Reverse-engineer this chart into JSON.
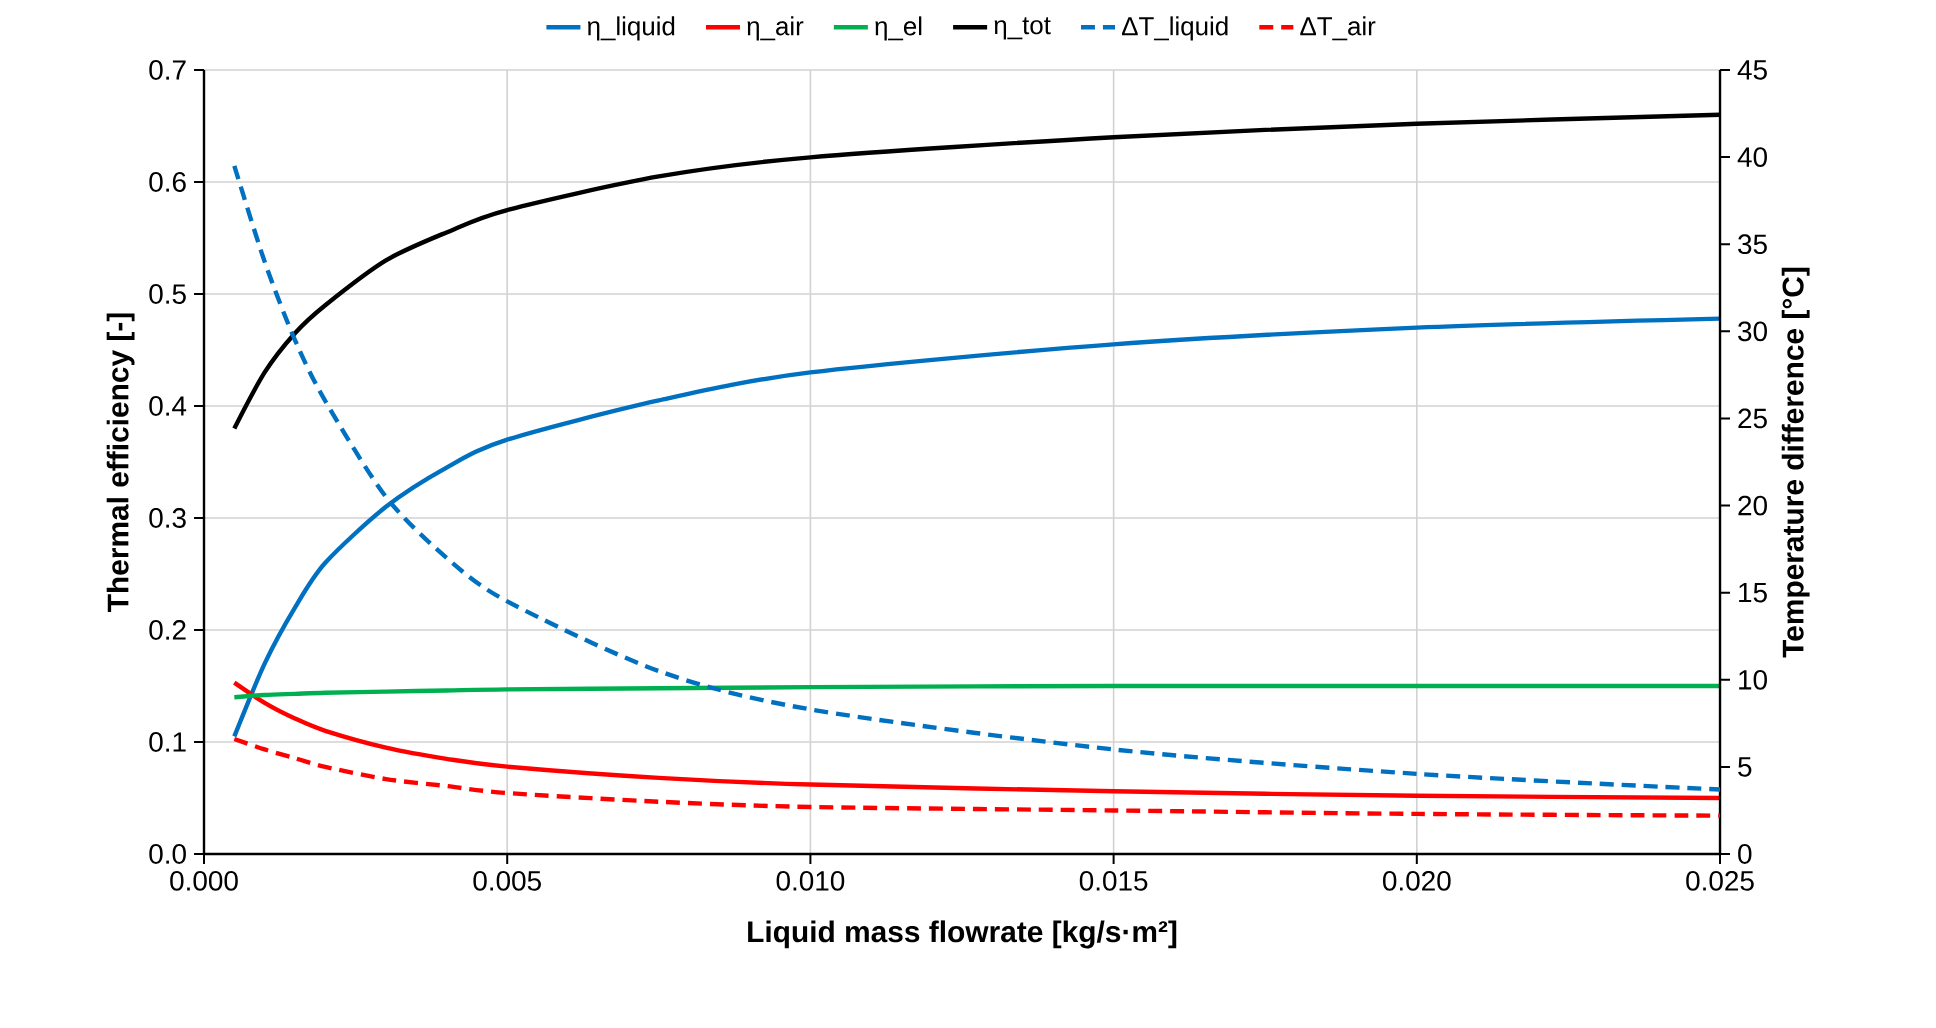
{
  "chart_data": {
    "type": "line",
    "xlabel": "Liquid mass flowrate [kg/s·m²]",
    "ylabel": "Thermal efficiency  [-]",
    "y2label": "Temperature difference   [°C]",
    "xlim": [
      0,
      0.025
    ],
    "xticks": [
      {
        "value": 0,
        "label": "0.000"
      },
      {
        "value": 0.005,
        "label": "0.005"
      },
      {
        "value": 0.01,
        "label": "0.010"
      },
      {
        "value": 0.015,
        "label": "0.015"
      },
      {
        "value": 0.02,
        "label": "0.020"
      },
      {
        "value": 0.025,
        "label": "0.025"
      }
    ],
    "ylim": [
      0,
      0.7
    ],
    "yticks": [
      {
        "value": 0,
        "label": "0.0"
      },
      {
        "value": 0.1,
        "label": "0.1"
      },
      {
        "value": 0.2,
        "label": "0.2"
      },
      {
        "value": 0.3,
        "label": "0.3"
      },
      {
        "value": 0.4,
        "label": "0.4"
      },
      {
        "value": 0.5,
        "label": "0.5"
      },
      {
        "value": 0.6,
        "label": "0.6"
      },
      {
        "value": 0.7,
        "label": "0.7"
      }
    ],
    "y2lim": [
      0,
      45
    ],
    "y2ticks": [
      0,
      5,
      10,
      15,
      20,
      25,
      30,
      35,
      40,
      45
    ],
    "grid": true,
    "legend": "top",
    "marker": "none",
    "x": [
      0.0005,
      0.001,
      0.0015,
      0.002,
      0.003,
      0.004,
      0.005,
      0.0075,
      0.01,
      0.015,
      0.02,
      0.025
    ],
    "series": [
      {
        "name": "η_liquid",
        "color": "#0070c0",
        "line_style": "solid",
        "values": [
          0.105,
          0.17,
          0.22,
          0.26,
          0.31,
          0.345,
          0.37,
          0.405,
          0.43,
          0.455,
          0.47,
          0.478
        ]
      },
      {
        "name": "η_air",
        "color": "#ff0000",
        "line_style": "solid",
        "values": [
          0.153,
          0.135,
          0.121,
          0.11,
          0.095,
          0.085,
          0.078,
          0.068,
          0.062,
          0.056,
          0.052,
          0.05
        ]
      },
      {
        "name": "η_el",
        "color": "#00b050",
        "line_style": "solid",
        "values": [
          0.14,
          0.142,
          0.143,
          0.144,
          0.145,
          0.146,
          0.147,
          0.148,
          0.149,
          0.15,
          0.15,
          0.15
        ]
      },
      {
        "name": "η_tot",
        "color": "#000000",
        "line_style": "solid",
        "values": [
          0.38,
          0.43,
          0.465,
          0.49,
          0.53,
          0.555,
          0.575,
          0.605,
          0.622,
          0.64,
          0.652,
          0.66
        ]
      },
      {
        "name": "ΔT_liquid",
        "color": "#0070c0",
        "line_style": "dashed",
        "axis": "y2",
        "values": [
          39.5,
          34,
          29.5,
          26,
          20.5,
          17,
          14.5,
          10.5,
          8.3,
          6,
          4.6,
          3.7
        ]
      },
      {
        "name": "ΔT_air",
        "color": "#ff0000",
        "line_style": "dashed",
        "axis": "y2",
        "values": [
          6.6,
          6.0,
          5.5,
          5.0,
          4.3,
          3.9,
          3.5,
          3.0,
          2.7,
          2.5,
          2.3,
          2.2
        ]
      }
    ]
  }
}
